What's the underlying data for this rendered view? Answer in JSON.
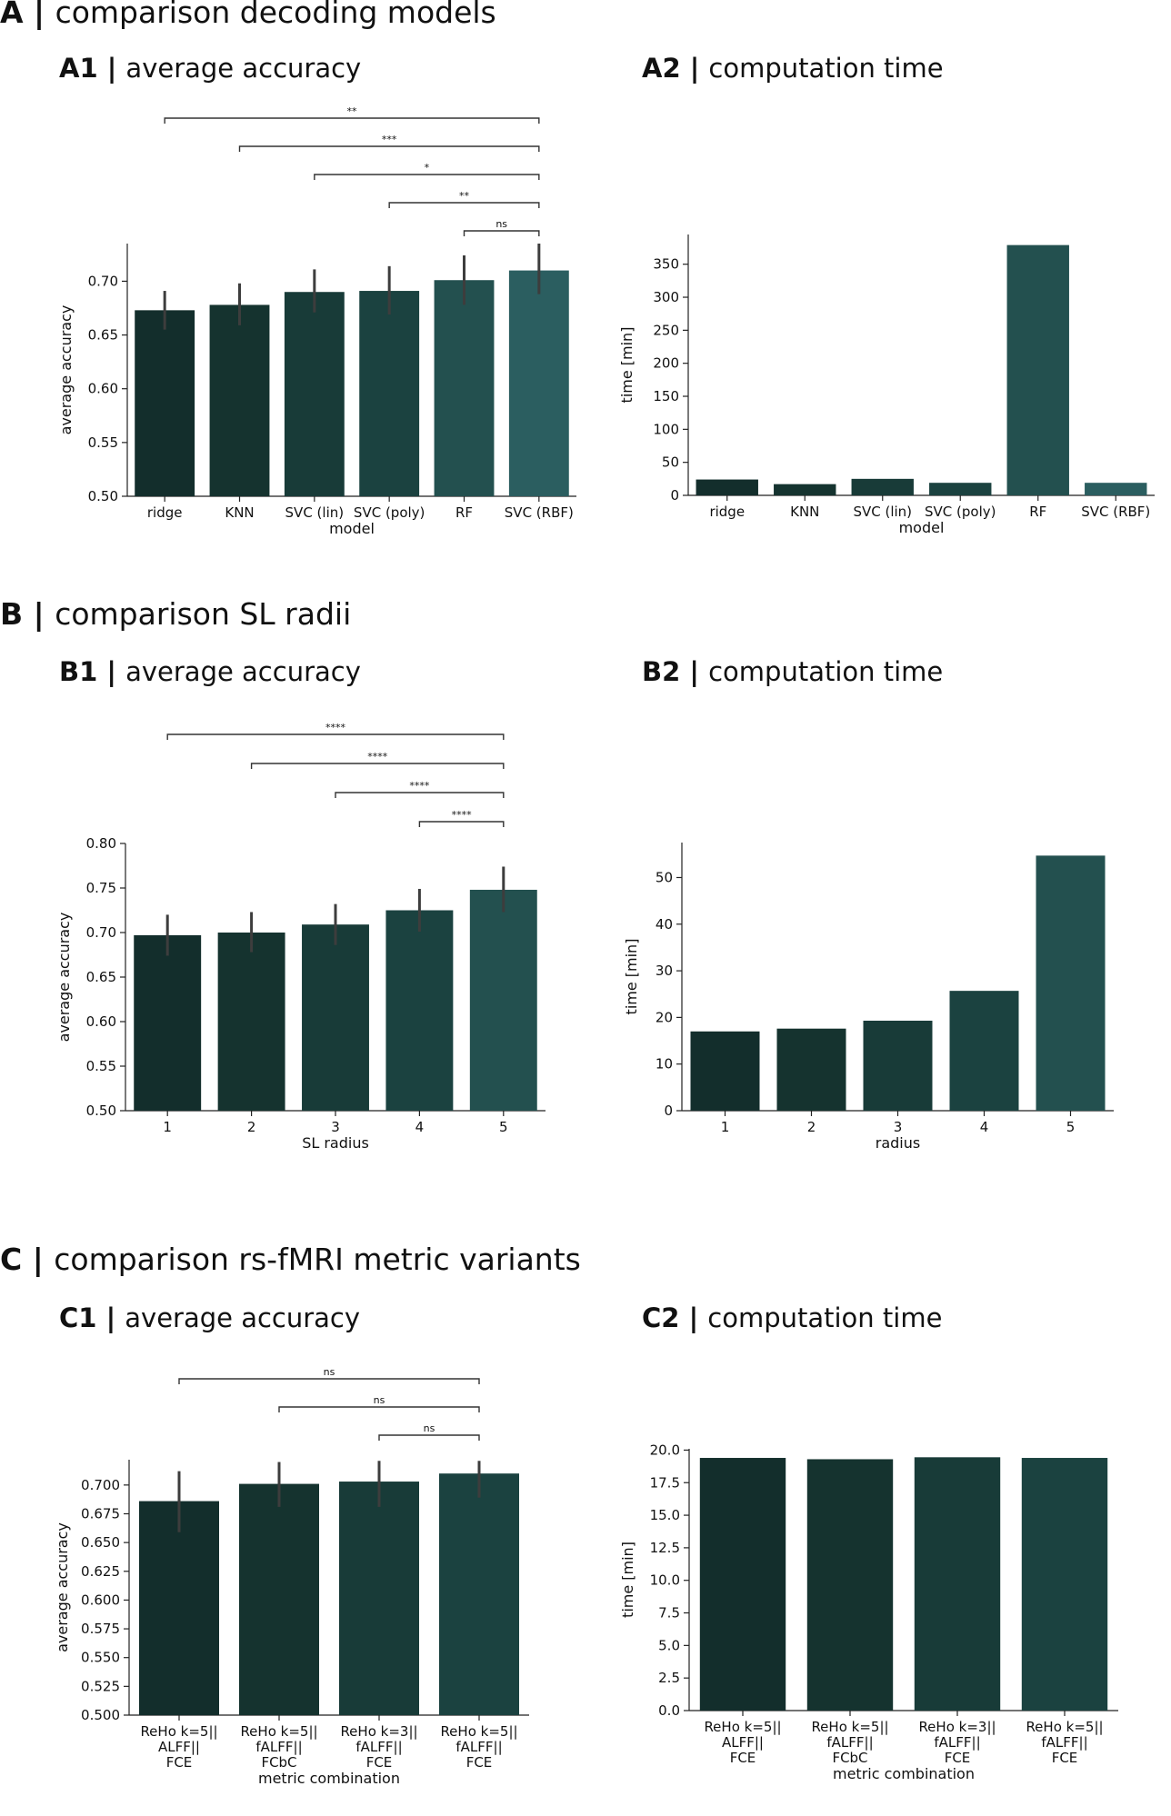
{
  "sections": [
    {
      "letter": "A",
      "sep": " | ",
      "text": "comparison decoding models",
      "subs": [
        {
          "label": "A1",
          "sep": " | ",
          "text": "average accuracy"
        },
        {
          "label": "A2",
          "sep": " | ",
          "text": "computation time"
        }
      ]
    },
    {
      "letter": "B",
      "sep": " | ",
      "text": "comparison SL radii",
      "subs": [
        {
          "label": "B1",
          "sep": " | ",
          "text": "average accuracy"
        },
        {
          "label": "B2",
          "sep": " | ",
          "text": "computation time"
        }
      ]
    },
    {
      "letter": "C",
      "sep": " | ",
      "text": "comparison rs-fMRI metric variants",
      "subs": [
        {
          "label": "C1",
          "sep": " | ",
          "text": "average accuracy"
        },
        {
          "label": "C2",
          "sep": " | ",
          "text": "computation time"
        }
      ]
    }
  ],
  "colors": [
    "#132e2c",
    "#15332f",
    "#183b38",
    "#1b4240",
    "#23504f",
    "#2b5e60"
  ],
  "chart_data": [
    {
      "id": "A1",
      "type": "bar",
      "title": "average accuracy",
      "xlabel": "model",
      "ylabel": "average accuracy",
      "categories": [
        "ridge",
        "KNN",
        "SVC (lin)",
        "SVC (poly)",
        "RF",
        "SVC (RBF)"
      ],
      "values": [
        0.673,
        0.678,
        0.69,
        0.691,
        0.701,
        0.71
      ],
      "err_low": [
        0.655,
        0.659,
        0.671,
        0.669,
        0.678,
        0.688
      ],
      "err_high": [
        0.691,
        0.698,
        0.711,
        0.714,
        0.724,
        0.735
      ],
      "ylim": [
        0.5,
        0.735
      ],
      "yticks": [
        0.5,
        0.55,
        0.6,
        0.65,
        0.7
      ],
      "ytick_labels": [
        "0.50",
        "0.55",
        "0.60",
        "0.65",
        "0.70"
      ],
      "colors": [
        0,
        1,
        2,
        3,
        4,
        5
      ],
      "significance": [
        {
          "from": 0,
          "to": 5,
          "label": "**"
        },
        {
          "from": 1,
          "to": 5,
          "label": "***"
        },
        {
          "from": 2,
          "to": 5,
          "label": "*"
        },
        {
          "from": 3,
          "to": 5,
          "label": "**"
        },
        {
          "from": 4,
          "to": 5,
          "label": "ns"
        }
      ]
    },
    {
      "id": "A2",
      "type": "bar",
      "title": "computation time",
      "xlabel": "model",
      "ylabel": "time [min]",
      "categories": [
        "ridge",
        "KNN",
        "SVC (lin)",
        "SVC (poly)",
        "RF",
        "SVC (RBF)"
      ],
      "values": [
        24,
        17,
        25,
        19,
        379,
        19
      ],
      "ylim": [
        0,
        395
      ],
      "yticks": [
        0,
        50,
        100,
        150,
        200,
        250,
        300,
        350
      ],
      "ytick_labels": [
        "0",
        "50",
        "100",
        "150",
        "200",
        "250",
        "300",
        "350"
      ],
      "colors": [
        0,
        1,
        2,
        3,
        4,
        5
      ],
      "significance": []
    },
    {
      "id": "B1",
      "type": "bar",
      "title": "average accuracy",
      "xlabel": "SL radius",
      "ylabel": "average accuracy",
      "categories": [
        "1",
        "2",
        "3",
        "4",
        "5"
      ],
      "values": [
        0.697,
        0.7,
        0.709,
        0.725,
        0.748
      ],
      "err_low": [
        0.674,
        0.678,
        0.686,
        0.701,
        0.723
      ],
      "err_high": [
        0.72,
        0.723,
        0.732,
        0.749,
        0.774
      ],
      "ylim": [
        0.5,
        0.8
      ],
      "yticks": [
        0.5,
        0.55,
        0.6,
        0.65,
        0.7,
        0.75,
        0.8
      ],
      "ytick_labels": [
        "0.50",
        "0.55",
        "0.60",
        "0.65",
        "0.70",
        "0.75",
        "0.80"
      ],
      "colors": [
        0,
        1,
        2,
        3,
        4
      ],
      "significance": [
        {
          "from": 0,
          "to": 4,
          "label": "****"
        },
        {
          "from": 1,
          "to": 4,
          "label": "****"
        },
        {
          "from": 2,
          "to": 4,
          "label": "****"
        },
        {
          "from": 3,
          "to": 4,
          "label": "****"
        }
      ]
    },
    {
      "id": "B2",
      "type": "bar",
      "title": "computation time",
      "xlabel": "radius",
      "ylabel": "time [min]",
      "categories": [
        "1",
        "2",
        "3",
        "4",
        "5"
      ],
      "values": [
        17.0,
        17.6,
        19.3,
        25.7,
        54.7
      ],
      "ylim": [
        0,
        57.5
      ],
      "yticks": [
        0,
        10,
        20,
        30,
        40,
        50
      ],
      "ytick_labels": [
        "0",
        "10",
        "20",
        "30",
        "40",
        "50"
      ],
      "colors": [
        0,
        1,
        2,
        3,
        4
      ],
      "significance": []
    },
    {
      "id": "C1",
      "type": "bar",
      "title": "average accuracy",
      "xlabel": "metric combination",
      "ylabel": "average accuracy",
      "categories": [
        [
          "ReHo k=5||",
          "ALFF||",
          "FCE"
        ],
        [
          "ReHo k=5||",
          "fALFF||",
          "FCbC"
        ],
        [
          "ReHo k=3||",
          "fALFF||",
          "FCE"
        ],
        [
          "ReHo k=5||",
          "fALFF||",
          "FCE"
        ]
      ],
      "values": [
        0.686,
        0.701,
        0.703,
        0.71
      ],
      "err_low": [
        0.659,
        0.681,
        0.681,
        0.689
      ],
      "err_high": [
        0.712,
        0.72,
        0.721,
        0.721
      ],
      "ylim": [
        0.5,
        0.722
      ],
      "yticks": [
        0.5,
        0.525,
        0.55,
        0.575,
        0.6,
        0.625,
        0.65,
        0.675,
        0.7
      ],
      "ytick_labels": [
        "0.500",
        "0.525",
        "0.550",
        "0.575",
        "0.600",
        "0.625",
        "0.650",
        "0.675",
        "0.700"
      ],
      "colors": [
        0,
        1,
        2,
        3
      ],
      "significance": [
        {
          "from": 0,
          "to": 3,
          "label": "ns"
        },
        {
          "from": 1,
          "to": 3,
          "label": "ns"
        },
        {
          "from": 2,
          "to": 3,
          "label": "ns"
        }
      ]
    },
    {
      "id": "C2",
      "type": "bar",
      "title": "computation time",
      "xlabel": "metric combination",
      "ylabel": "time [min]",
      "categories": [
        [
          "ReHo k=5||",
          "ALFF||",
          "FCE"
        ],
        [
          "ReHo k=5||",
          "fALFF||",
          "FCbC"
        ],
        [
          "ReHo k=3||",
          "fALFF||",
          "FCE"
        ],
        [
          "ReHo k=5||",
          "fALFF||",
          "FCE"
        ]
      ],
      "values": [
        19.4,
        19.3,
        19.45,
        19.4
      ],
      "ylim": [
        0,
        20.1
      ],
      "yticks": [
        0,
        2.5,
        5,
        7.5,
        10,
        12.5,
        15,
        17.5,
        20
      ],
      "ytick_labels": [
        "0.0",
        "2.5",
        "5.0",
        "7.5",
        "10.0",
        "12.5",
        "15.0",
        "17.5",
        "20.0"
      ],
      "colors": [
        0,
        1,
        2,
        3
      ],
      "significance": []
    }
  ]
}
